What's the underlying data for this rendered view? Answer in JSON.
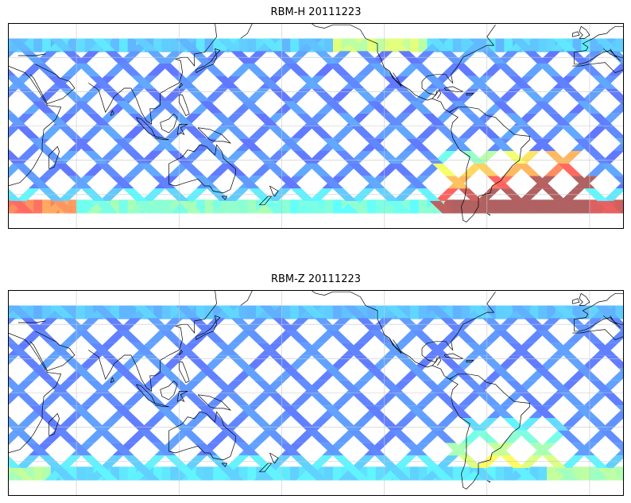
{
  "figure": {
    "panels": [
      {
        "title": "RBM-H 20111223",
        "variable": "RBM-H",
        "date": "20111223",
        "colormap": "jet",
        "high_value_region": "southern-ocean"
      },
      {
        "title": "RBM-Z 20111223",
        "variable": "RBM-Z",
        "date": "20111223",
        "colormap": "jet",
        "high_value_region": "weak-southern-ocean"
      }
    ],
    "map": {
      "projection": "PlateCarree",
      "lon_range": [
        20,
        380
      ],
      "lat_range": [
        -60,
        60
      ],
      "data_lat_range": [
        -51,
        51
      ],
      "gridlines": true,
      "coastlines": true
    },
    "colors": {
      "track_low": "#5e66f0",
      "track_mid": "#60b8ff",
      "track_high": "#ff7a5a",
      "coastline": "#000000",
      "grid": "#c8c8c8"
    }
  }
}
